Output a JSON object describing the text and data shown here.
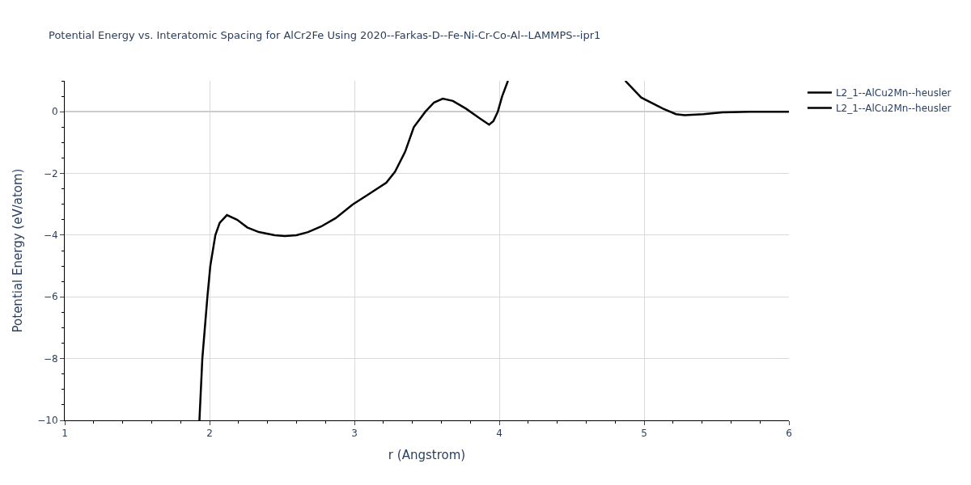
{
  "chart_data": {
    "type": "line",
    "title": "Potential Energy vs. Interatomic Spacing for AlCr2Fe Using 2020--Farkas-D--Fe-Ni-Cr-Co-Al--LAMMPS--ipr1",
    "xlabel": "r (Angstrom)",
    "ylabel": "Potential Energy (eV/atom)",
    "x": [
      1.93,
      1.95,
      1.985,
      2.005,
      2.04,
      2.07,
      2.12,
      2.19,
      2.26,
      2.34,
      2.45,
      2.52,
      2.6,
      2.68,
      2.77,
      2.87,
      2.99,
      3.09,
      3.22,
      3.28,
      3.35,
      3.41,
      3.49,
      3.55,
      3.61,
      3.68,
      3.77,
      3.86,
      3.93,
      3.96,
      3.99,
      4.02,
      4.06,
      4.5,
      4.87,
      4.98,
      5.13,
      5.22,
      5.28,
      5.41,
      5.54,
      5.73,
      6.0
    ],
    "series": [
      {
        "name": "L2_1--AlCu2Mn--heusler",
        "color": "#000000",
        "values": [
          -10,
          -8,
          -6,
          -5,
          -4,
          -3.6,
          -3.35,
          -3.5,
          -3.75,
          -3.9,
          -4.0,
          -4.03,
          -4.0,
          -3.9,
          -3.72,
          -3.45,
          -3.0,
          -2.7,
          -2.3,
          -1.95,
          -1.3,
          -0.5,
          0.0,
          0.3,
          0.42,
          0.35,
          0.1,
          -0.2,
          -0.42,
          -0.3,
          0.0,
          0.5,
          1.0,
          null,
          1.0,
          0.46,
          0.1,
          -0.08,
          -0.11,
          -0.08,
          -0.02,
          0.0,
          0.0
        ]
      },
      {
        "name": "L2_1--AlCu2Mn--heusler",
        "color": "#000000",
        "values": [
          null,
          null,
          null,
          null,
          null,
          null,
          null,
          null,
          null,
          null,
          null,
          null,
          null,
          null,
          null,
          null,
          null,
          null,
          null,
          null,
          null,
          null,
          null,
          null,
          null,
          null,
          null,
          null,
          null,
          null,
          null,
          null,
          null,
          null,
          null,
          null,
          null,
          null,
          null,
          null,
          null,
          null,
          null
        ]
      }
    ],
    "xlim": [
      1,
      6
    ],
    "xticks": [
      1,
      2,
      3,
      4,
      5,
      6
    ],
    "ylim": [
      -10,
      1
    ],
    "yticks": [
      -10,
      -8,
      -6,
      -4,
      -2,
      0
    ],
    "grid": true,
    "legend": "top right",
    "marker": "none",
    "line_style": "solid"
  }
}
